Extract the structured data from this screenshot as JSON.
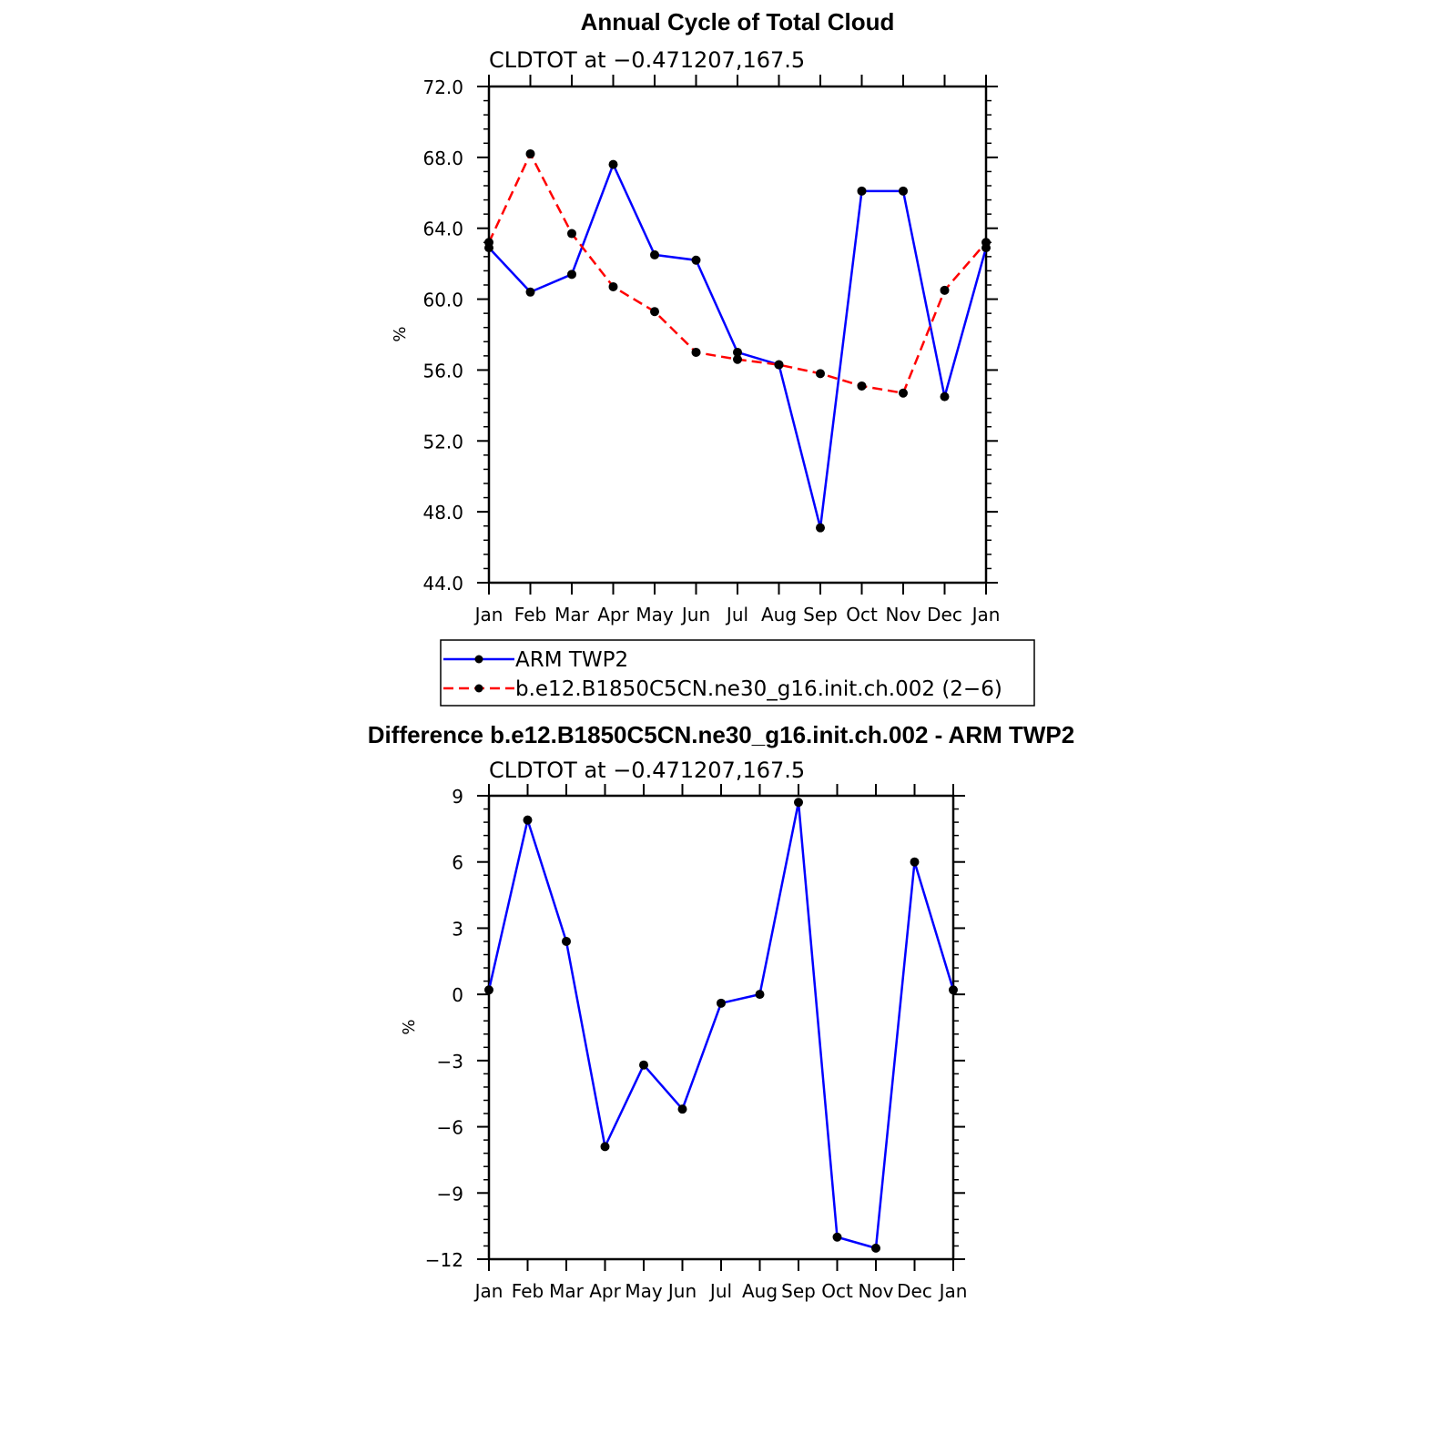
{
  "chart_data": [
    {
      "type": "line",
      "title": "Annual Cycle of Total Cloud",
      "subtitle": "CLDTOT at −0.471207,167.5",
      "ylabel": "%",
      "xlabel": "",
      "categories": [
        "Jan",
        "Feb",
        "Mar",
        "Apr",
        "May",
        "Jun",
        "Jul",
        "Aug",
        "Sep",
        "Oct",
        "Nov",
        "Dec",
        "Jan"
      ],
      "ylim": [
        44,
        72
      ],
      "yticks": [
        44,
        48,
        52,
        56,
        60,
        64,
        68,
        72
      ],
      "ytick_labels": [
        "44.0",
        "48.0",
        "52.0",
        "56.0",
        "60.0",
        "64.0",
        "68.0",
        "72.0"
      ],
      "series": [
        {
          "name": "ARM TWP2",
          "color": "#0000ff",
          "dash": "solid",
          "values": [
            62.9,
            60.4,
            61.4,
            67.6,
            62.5,
            62.2,
            57.0,
            56.3,
            47.1,
            66.1,
            66.1,
            54.5,
            62.9
          ]
        },
        {
          "name": "b.e12.B1850C5CN.ne30_g16.init.ch.002 (2−6)",
          "color": "#ff0000",
          "dash": "dashed",
          "values": [
            63.2,
            68.2,
            63.7,
            60.7,
            59.3,
            57.0,
            56.6,
            56.3,
            55.8,
            55.1,
            54.7,
            60.5,
            63.2
          ]
        }
      ],
      "legend": "below"
    },
    {
      "type": "line",
      "title": "Difference b.e12.B1850C5CN.ne30_g16.init.ch.002 - ARM TWP2",
      "subtitle": "CLDTOT at −0.471207,167.5",
      "ylabel": "%",
      "xlabel": "",
      "categories": [
        "Jan",
        "Feb",
        "Mar",
        "Apr",
        "May",
        "Jun",
        "Jul",
        "Aug",
        "Sep",
        "Oct",
        "Nov",
        "Dec",
        "Jan"
      ],
      "ylim": [
        -12,
        9
      ],
      "yticks": [
        -12,
        -9,
        -6,
        -3,
        0,
        3,
        6,
        9
      ],
      "ytick_labels": [
        "−12",
        "−9",
        "−6",
        "−3",
        "0",
        "3",
        "6",
        "9"
      ],
      "series": [
        {
          "name": "Difference",
          "color": "#0000ff",
          "dash": "solid",
          "values": [
            0.2,
            7.9,
            2.4,
            -6.9,
            -3.2,
            -5.2,
            -0.4,
            0.0,
            8.7,
            -11.0,
            -11.5,
            6.0,
            0.2
          ]
        }
      ]
    }
  ]
}
